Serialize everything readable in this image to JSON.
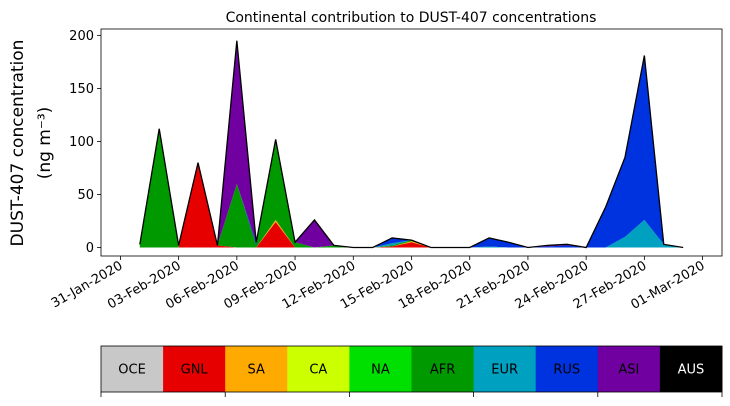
{
  "chart_data": {
    "type": "area",
    "title": "Continental contribution to DUST-407 concentrations",
    "ylabel_line1": "DUST-407 concentration",
    "ylabel_line2": "(ng m⁻³)",
    "stacked": true,
    "ylim": [
      -8,
      206
    ],
    "yticks": [
      0,
      50,
      100,
      150,
      200
    ],
    "xlim": [
      "2020-01-30",
      "2020-03-02"
    ],
    "xticks": [
      "31-Jan-2020",
      "03-Feb-2020",
      "06-Feb-2020",
      "09-Feb-2020",
      "12-Feb-2020",
      "15-Feb-2020",
      "18-Feb-2020",
      "21-Feb-2020",
      "24-Feb-2020",
      "27-Feb-2020",
      "01-Mar-2020"
    ],
    "x": [
      "2020-02-01",
      "2020-02-02",
      "2020-02-03",
      "2020-02-04",
      "2020-02-05",
      "2020-02-06",
      "2020-02-07",
      "2020-02-08",
      "2020-02-09",
      "2020-02-10",
      "2020-02-11",
      "2020-02-12",
      "2020-02-13",
      "2020-02-14",
      "2020-02-15",
      "2020-02-16",
      "2020-02-17",
      "2020-02-18",
      "2020-02-19",
      "2020-02-20",
      "2020-02-21",
      "2020-02-22",
      "2020-02-23",
      "2020-02-24",
      "2020-02-25",
      "2020-02-26",
      "2020-02-27",
      "2020-02-28",
      "2020-02-29"
    ],
    "series": [
      {
        "name": "OCE",
        "color": "#c8c8c8",
        "values": [
          0,
          0,
          0,
          0,
          0,
          0,
          0,
          0,
          0,
          0,
          0,
          0,
          0,
          0,
          0,
          0,
          0,
          0,
          0,
          0,
          0,
          0,
          0,
          0,
          0,
          0,
          0,
          0,
          0
        ]
      },
      {
        "name": "GNL",
        "color": "#e60000",
        "values": [
          0,
          0,
          0,
          80,
          2,
          0,
          0,
          24,
          0,
          0,
          0,
          0,
          0,
          1,
          5,
          0,
          0,
          0,
          0,
          0,
          0,
          0,
          0,
          0,
          0,
          0,
          0,
          0,
          0
        ]
      },
      {
        "name": "SA",
        "color": "#ffaa00",
        "values": [
          0,
          0,
          0,
          0,
          0,
          0,
          0,
          2,
          0,
          0,
          0,
          0,
          0,
          0,
          1,
          0,
          0,
          0,
          0,
          0,
          0,
          0,
          0,
          0,
          0,
          0,
          0,
          0,
          0
        ]
      },
      {
        "name": "CA",
        "color": "#ccff00",
        "values": [
          0,
          0,
          0,
          0,
          0,
          0,
          0,
          0,
          0,
          0,
          0,
          0,
          0,
          0,
          0,
          0,
          0,
          0,
          0,
          0,
          0,
          0,
          0,
          0,
          0,
          0,
          0,
          0,
          0
        ]
      },
      {
        "name": "NA",
        "color": "#00e000",
        "values": [
          0,
          0,
          0,
          0,
          0,
          0,
          0,
          0,
          0,
          0,
          0,
          0,
          0,
          0,
          0,
          0,
          0,
          0,
          0,
          0,
          0,
          0,
          0,
          0,
          0,
          0,
          0,
          0,
          0
        ]
      },
      {
        "name": "AFR",
        "color": "#009900",
        "values": [
          3,
          112,
          2,
          0,
          0,
          60,
          2,
          76,
          5,
          0,
          2,
          0,
          0,
          1,
          1,
          0,
          0,
          0,
          0,
          0,
          0,
          0,
          0,
          0,
          0,
          0,
          0,
          0,
          0
        ]
      },
      {
        "name": "EUR",
        "color": "#00a0c0",
        "values": [
          0,
          0,
          0,
          0,
          0,
          0,
          0,
          0,
          0,
          0,
          0,
          0,
          0,
          2,
          0,
          0,
          0,
          0,
          1,
          0,
          0,
          0,
          0,
          0,
          0,
          10,
          26,
          3,
          0
        ]
      },
      {
        "name": "RUS",
        "color": "#0033e0",
        "values": [
          0,
          0,
          0,
          0,
          0,
          0,
          3,
          0,
          0,
          0,
          0,
          0,
          0,
          5,
          0,
          0,
          0,
          0,
          8,
          5,
          0,
          1,
          2,
          0,
          38,
          75,
          155,
          0,
          0
        ]
      },
      {
        "name": "ASI",
        "color": "#7000a0",
        "values": [
          0,
          0,
          0,
          0,
          0,
          135,
          0,
          0,
          0,
          26,
          0,
          0,
          0,
          0,
          0,
          0,
          0,
          0,
          0,
          0,
          0,
          1,
          1,
          0,
          0,
          0,
          0,
          0,
          0
        ]
      },
      {
        "name": "AUS",
        "color": "#000000",
        "values": [
          0,
          0,
          0,
          0,
          0,
          0,
          0,
          0,
          0,
          0,
          0,
          0,
          0,
          0,
          0,
          0,
          0,
          0,
          0,
          0,
          0,
          0,
          0,
          0,
          0,
          0,
          0,
          0,
          0
        ]
      }
    ],
    "legend": {
      "placement": "bottom",
      "style": "colorbar"
    }
  }
}
